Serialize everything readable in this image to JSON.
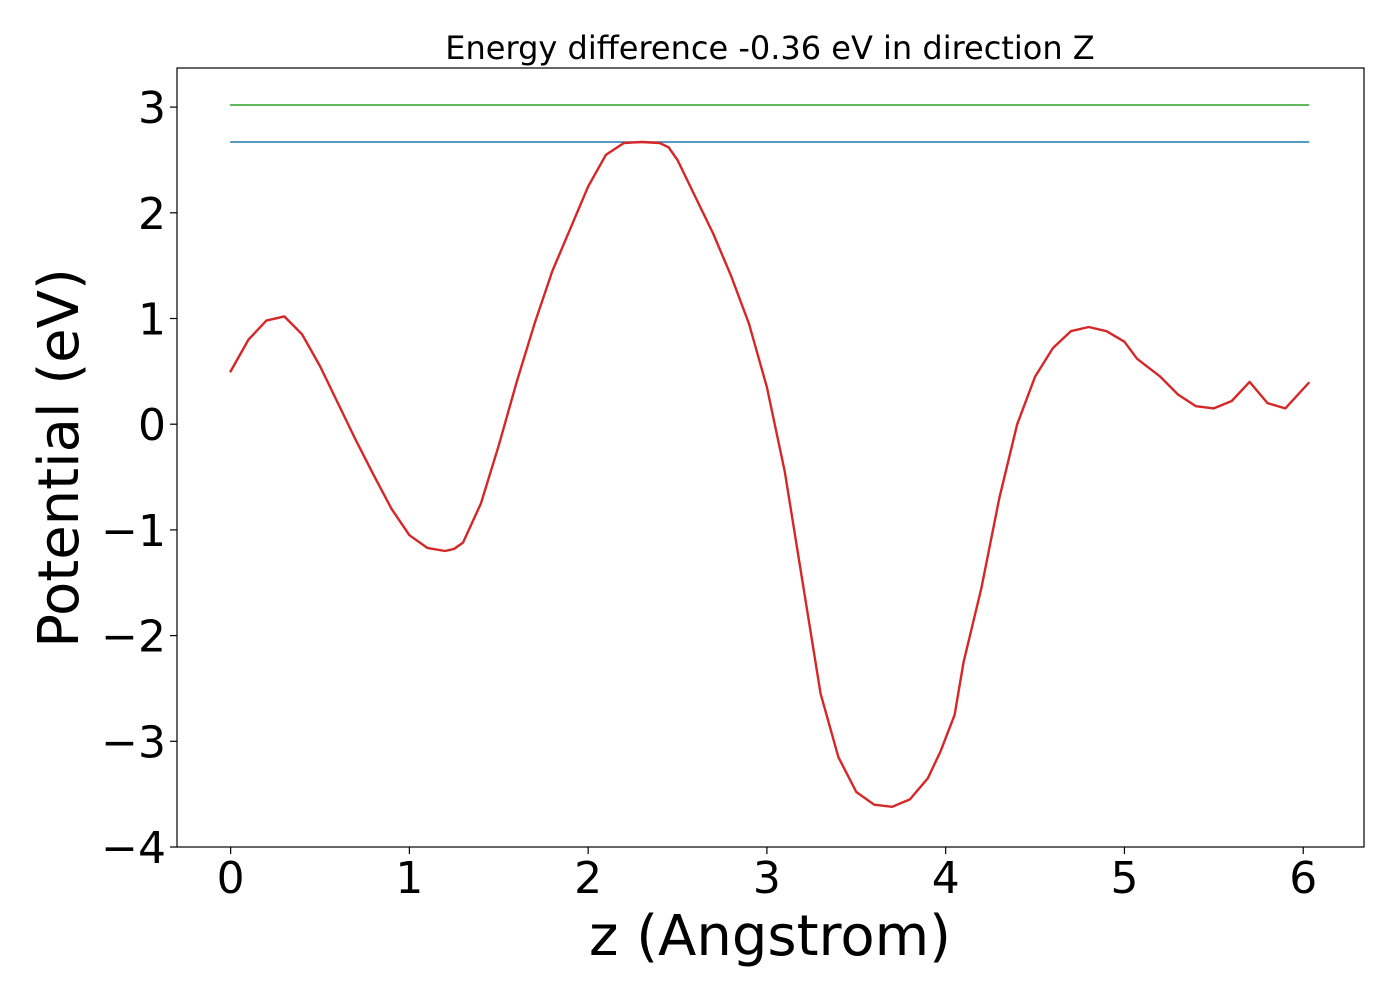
{
  "chart_data": {
    "type": "line",
    "title": "Energy difference -0.36 eV in direction Z",
    "xlabel": "z (Angstrom)",
    "ylabel": "Potential (eV)",
    "xlim": [
      -0.3,
      6.34
    ],
    "ylim": [
      -4.0,
      3.37
    ],
    "x_ticks": [
      0,
      1,
      2,
      3,
      4,
      5,
      6
    ],
    "x_tick_labels": [
      "0",
      "1",
      "2",
      "3",
      "4",
      "5",
      "6"
    ],
    "y_ticks": [
      3,
      2,
      1,
      0,
      -1,
      -2,
      -3,
      -4
    ],
    "y_tick_labels": [
      "3",
      "2",
      "1",
      "0",
      "−1",
      "−2",
      "−3",
      "−4"
    ],
    "grid": false,
    "legend": "none",
    "series": [
      {
        "color": "#2ca02c",
        "x": [
          0.0,
          6.03
        ],
        "y": [
          3.02,
          3.02
        ]
      },
      {
        "color": "#1f77b4",
        "x": [
          0.0,
          6.03
        ],
        "y": [
          2.67,
          2.67
        ]
      },
      {
        "color": "#d62728",
        "x": [
          0.0,
          0.1,
          0.2,
          0.3,
          0.4,
          0.5,
          0.6,
          0.7,
          0.8,
          0.9,
          1.0,
          1.1,
          1.2,
          1.25,
          1.3,
          1.4,
          1.5,
          1.6,
          1.7,
          1.8,
          1.9,
          2.0,
          2.1,
          2.2,
          2.3,
          2.4,
          2.45,
          2.5,
          2.6,
          2.7,
          2.8,
          2.9,
          3.0,
          3.1,
          3.2,
          3.3,
          3.4,
          3.5,
          3.6,
          3.7,
          3.8,
          3.9,
          3.97,
          4.05,
          4.1,
          4.2,
          4.3,
          4.4,
          4.5,
          4.6,
          4.7,
          4.8,
          4.9,
          5.0,
          5.07,
          5.2,
          5.3,
          5.4,
          5.5,
          5.6,
          5.7,
          5.8,
          5.9,
          6.03
        ],
        "y": [
          0.5,
          0.8,
          0.98,
          1.02,
          0.85,
          0.55,
          0.2,
          -0.15,
          -0.48,
          -0.8,
          -1.05,
          -1.17,
          -1.2,
          -1.18,
          -1.12,
          -0.75,
          -0.2,
          0.4,
          0.95,
          1.45,
          1.85,
          2.25,
          2.55,
          2.66,
          2.67,
          2.66,
          2.62,
          2.5,
          2.15,
          1.8,
          1.4,
          0.95,
          0.35,
          -0.45,
          -1.5,
          -2.55,
          -3.15,
          -3.48,
          -3.6,
          -3.62,
          -3.55,
          -3.35,
          -3.1,
          -2.75,
          -2.25,
          -1.55,
          -0.7,
          0.0,
          0.45,
          0.72,
          0.88,
          0.92,
          0.88,
          0.78,
          0.62,
          0.45,
          0.28,
          0.17,
          0.15,
          0.22,
          0.4,
          0.2,
          0.15,
          0.39
        ]
      }
    ]
  }
}
